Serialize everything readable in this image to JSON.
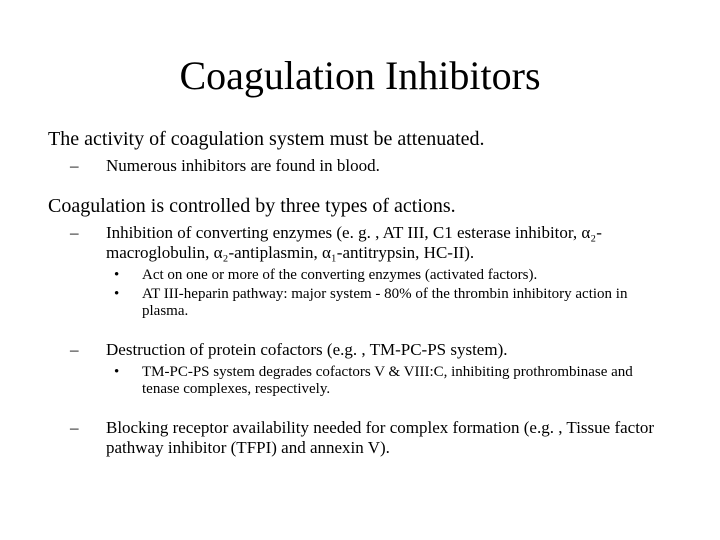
{
  "colors": {
    "background": "#ffffff",
    "text": "#000000"
  },
  "typography": {
    "title_family": "Times New Roman",
    "body_family": "Times New Roman",
    "title_size_pt": 30,
    "body_size_pt": 15,
    "sub1_size_pt": 13,
    "sub2_size_pt": 11
  },
  "title": "Coagulation Inhibitors",
  "sections": [
    {
      "text": "The activity of coagulation system must be attenuated.",
      "sub1": [
        {
          "text": "Numerous inhibitors are found in blood."
        }
      ]
    },
    {
      "text": "Coagulation is controlled by three types of actions.",
      "sub1": [
        {
          "text": "Inhibition of converting enzymes (e. g. , AT III, C1 esterase inhibitor, α₂-macroglobulin, α₂-antiplasmin, α₁-antitrypsin, HC-II).",
          "sub2": [
            {
              "text": "Act on one or more of the converting enzymes (activated factors)."
            },
            {
              "text": "AT III-heparin pathway: major system - 80% of the thrombin inhibitory action in plasma."
            }
          ]
        },
        {
          "text": "Destruction of protein cofactors (e.g. , TM-PC-PS system).",
          "sub2": [
            {
              "text": "TM-PC-PS system degrades cofactors V & VIII:C, inhibiting prothrombinase and tenase complexes, respectively."
            }
          ]
        },
        {
          "text": "Blocking receptor availability needed for complex formation (e.g. , Tissue factor pathway inhibitor (TFPI) and annexin V)."
        }
      ]
    }
  ]
}
